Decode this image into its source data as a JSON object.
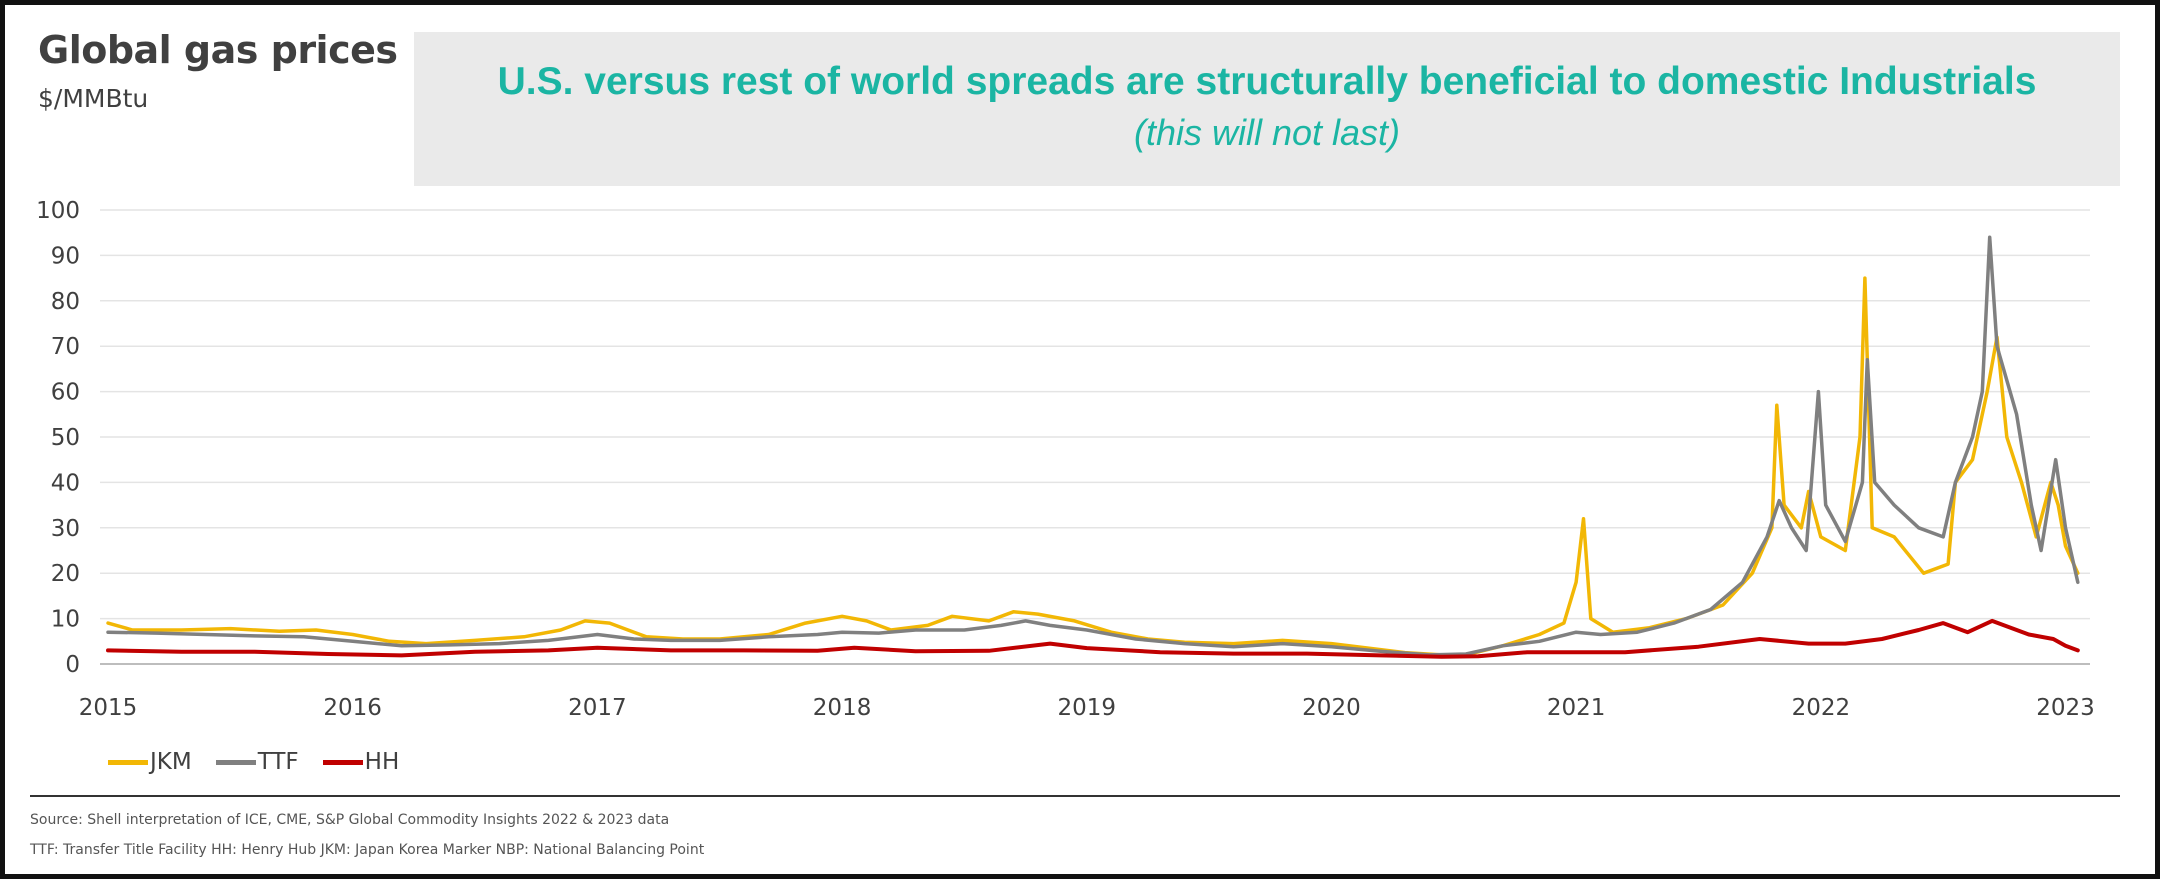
{
  "header": {
    "title": "Global gas prices",
    "units": "$/MMBtu"
  },
  "callout": {
    "headline": "U.S. versus rest of world spreads are structurally beneficial to domestic Industrials",
    "subline": "(this will not last)"
  },
  "legend": [
    {
      "name": "JKM",
      "color": "#f2b705"
    },
    {
      "name": "TTF",
      "color": "#808080"
    },
    {
      "name": "HH",
      "color": "#c00000"
    }
  ],
  "footer": {
    "source": "Source: Shell interpretation of ICE, CME, S&P Global Commodity Insights 2022 & 2023 data",
    "glossary": "TTF: Transfer Title Facility  HH: Henry Hub  JKM: Japan Korea Marker NBP: National Balancing Point"
  },
  "chart_data": {
    "type": "line",
    "title": "Global gas prices",
    "ylabel": "$/MMBtu",
    "xlabel": "",
    "xlim": [
      2015.0,
      2023.1
    ],
    "ylim": [
      0,
      100
    ],
    "yticks": [
      0,
      10,
      20,
      30,
      40,
      50,
      60,
      70,
      80,
      90,
      100
    ],
    "xticks": [
      "2015",
      "2016",
      "2017",
      "2018",
      "2019",
      "2020",
      "2021",
      "2022",
      "2023"
    ],
    "grid": "horizontal",
    "legend_position": "bottom-left",
    "series": [
      {
        "name": "JKM",
        "color": "#f2b705",
        "points": [
          [
            2015.0,
            9
          ],
          [
            2015.1,
            7.5
          ],
          [
            2015.3,
            7.5
          ],
          [
            2015.5,
            7.8
          ],
          [
            2015.7,
            7.2
          ],
          [
            2015.85,
            7.5
          ],
          [
            2016.0,
            6.5
          ],
          [
            2016.15,
            5
          ],
          [
            2016.3,
            4.5
          ],
          [
            2016.5,
            5.2
          ],
          [
            2016.7,
            6
          ],
          [
            2016.85,
            7.5
          ],
          [
            2016.95,
            9.5
          ],
          [
            2017.05,
            9
          ],
          [
            2017.2,
            6
          ],
          [
            2017.35,
            5.5
          ],
          [
            2017.5,
            5.5
          ],
          [
            2017.7,
            6.5
          ],
          [
            2017.85,
            9
          ],
          [
            2018.0,
            10.5
          ],
          [
            2018.1,
            9.5
          ],
          [
            2018.2,
            7.5
          ],
          [
            2018.35,
            8.5
          ],
          [
            2018.45,
            10.5
          ],
          [
            2018.6,
            9.5
          ],
          [
            2018.7,
            11.5
          ],
          [
            2018.8,
            11
          ],
          [
            2018.95,
            9.5
          ],
          [
            2019.1,
            7
          ],
          [
            2019.25,
            5.5
          ],
          [
            2019.4,
            4.8
          ],
          [
            2019.6,
            4.5
          ],
          [
            2019.8,
            5.2
          ],
          [
            2020.0,
            4.5
          ],
          [
            2020.15,
            3.5
          ],
          [
            2020.3,
            2.5
          ],
          [
            2020.45,
            2
          ],
          [
            2020.55,
            2
          ],
          [
            2020.7,
            4
          ],
          [
            2020.85,
            6.5
          ],
          [
            2020.95,
            9
          ],
          [
            2021.0,
            18
          ],
          [
            2021.03,
            32
          ],
          [
            2021.06,
            10
          ],
          [
            2021.15,
            7
          ],
          [
            2021.3,
            8
          ],
          [
            2021.45,
            10
          ],
          [
            2021.6,
            13
          ],
          [
            2021.72,
            20
          ],
          [
            2021.8,
            30
          ],
          [
            2021.82,
            57
          ],
          [
            2021.85,
            35
          ],
          [
            2021.92,
            30
          ],
          [
            2021.95,
            38
          ],
          [
            2022.0,
            28
          ],
          [
            2022.1,
            25
          ],
          [
            2022.16,
            50
          ],
          [
            2022.18,
            85
          ],
          [
            2022.21,
            30
          ],
          [
            2022.3,
            28
          ],
          [
            2022.42,
            20
          ],
          [
            2022.52,
            22
          ],
          [
            2022.55,
            40
          ],
          [
            2022.62,
            45
          ],
          [
            2022.68,
            60
          ],
          [
            2022.72,
            72
          ],
          [
            2022.76,
            50
          ],
          [
            2022.82,
            40
          ],
          [
            2022.88,
            28
          ],
          [
            2022.94,
            40
          ],
          [
            2022.97,
            35
          ],
          [
            2023.0,
            26
          ],
          [
            2023.05,
            20
          ]
        ]
      },
      {
        "name": "TTF",
        "color": "#808080",
        "points": [
          [
            2015.0,
            7
          ],
          [
            2015.2,
            6.8
          ],
          [
            2015.4,
            6.5
          ],
          [
            2015.6,
            6.2
          ],
          [
            2015.8,
            6
          ],
          [
            2016.0,
            5
          ],
          [
            2016.2,
            4
          ],
          [
            2016.4,
            4.2
          ],
          [
            2016.6,
            4.5
          ],
          [
            2016.8,
            5.2
          ],
          [
            2017.0,
            6.5
          ],
          [
            2017.15,
            5.5
          ],
          [
            2017.3,
            5.2
          ],
          [
            2017.5,
            5.2
          ],
          [
            2017.7,
            6
          ],
          [
            2017.9,
            6.5
          ],
          [
            2018.0,
            7
          ],
          [
            2018.15,
            6.8
          ],
          [
            2018.3,
            7.5
          ],
          [
            2018.5,
            7.5
          ],
          [
            2018.65,
            8.5
          ],
          [
            2018.75,
            9.5
          ],
          [
            2018.85,
            8.5
          ],
          [
            2019.0,
            7.5
          ],
          [
            2019.2,
            5.5
          ],
          [
            2019.4,
            4.5
          ],
          [
            2019.6,
            3.8
          ],
          [
            2019.8,
            4.5
          ],
          [
            2020.0,
            3.8
          ],
          [
            2020.2,
            2.8
          ],
          [
            2020.4,
            2
          ],
          [
            2020.55,
            2.2
          ],
          [
            2020.7,
            4
          ],
          [
            2020.85,
            5
          ],
          [
            2021.0,
            7
          ],
          [
            2021.1,
            6.5
          ],
          [
            2021.25,
            7
          ],
          [
            2021.4,
            9
          ],
          [
            2021.55,
            12
          ],
          [
            2021.68,
            18
          ],
          [
            2021.78,
            28
          ],
          [
            2021.83,
            36
          ],
          [
            2021.88,
            30
          ],
          [
            2021.94,
            25
          ],
          [
            2021.99,
            60
          ],
          [
            2022.02,
            35
          ],
          [
            2022.1,
            27
          ],
          [
            2022.17,
            40
          ],
          [
            2022.19,
            67
          ],
          [
            2022.22,
            40
          ],
          [
            2022.3,
            35
          ],
          [
            2022.4,
            30
          ],
          [
            2022.5,
            28
          ],
          [
            2022.55,
            40
          ],
          [
            2022.62,
            50
          ],
          [
            2022.66,
            60
          ],
          [
            2022.69,
            94
          ],
          [
            2022.72,
            70
          ],
          [
            2022.8,
            55
          ],
          [
            2022.86,
            35
          ],
          [
            2022.9,
            25
          ],
          [
            2022.96,
            45
          ],
          [
            2023.0,
            30
          ],
          [
            2023.05,
            18
          ]
        ]
      },
      {
        "name": "HH",
        "color": "#c00000",
        "points": [
          [
            2015.0,
            3
          ],
          [
            2015.3,
            2.7
          ],
          [
            2015.6,
            2.7
          ],
          [
            2015.9,
            2.2
          ],
          [
            2016.2,
            1.9
          ],
          [
            2016.5,
            2.7
          ],
          [
            2016.8,
            3
          ],
          [
            2017.0,
            3.6
          ],
          [
            2017.3,
            3
          ],
          [
            2017.6,
            3
          ],
          [
            2017.9,
            2.9
          ],
          [
            2018.05,
            3.6
          ],
          [
            2018.3,
            2.8
          ],
          [
            2018.6,
            2.9
          ],
          [
            2018.85,
            4.5
          ],
          [
            2019.0,
            3.5
          ],
          [
            2019.3,
            2.6
          ],
          [
            2019.6,
            2.3
          ],
          [
            2019.9,
            2.3
          ],
          [
            2020.2,
            1.9
          ],
          [
            2020.45,
            1.6
          ],
          [
            2020.6,
            1.7
          ],
          [
            2020.8,
            2.6
          ],
          [
            2021.0,
            2.6
          ],
          [
            2021.2,
            2.6
          ],
          [
            2021.5,
            3.8
          ],
          [
            2021.75,
            5.5
          ],
          [
            2021.95,
            4.5
          ],
          [
            2022.1,
            4.5
          ],
          [
            2022.25,
            5.5
          ],
          [
            2022.4,
            7.5
          ],
          [
            2022.5,
            9
          ],
          [
            2022.6,
            7
          ],
          [
            2022.7,
            9.5
          ],
          [
            2022.85,
            6.5
          ],
          [
            2022.95,
            5.5
          ],
          [
            2023.0,
            4
          ],
          [
            2023.05,
            3
          ]
        ]
      }
    ]
  }
}
